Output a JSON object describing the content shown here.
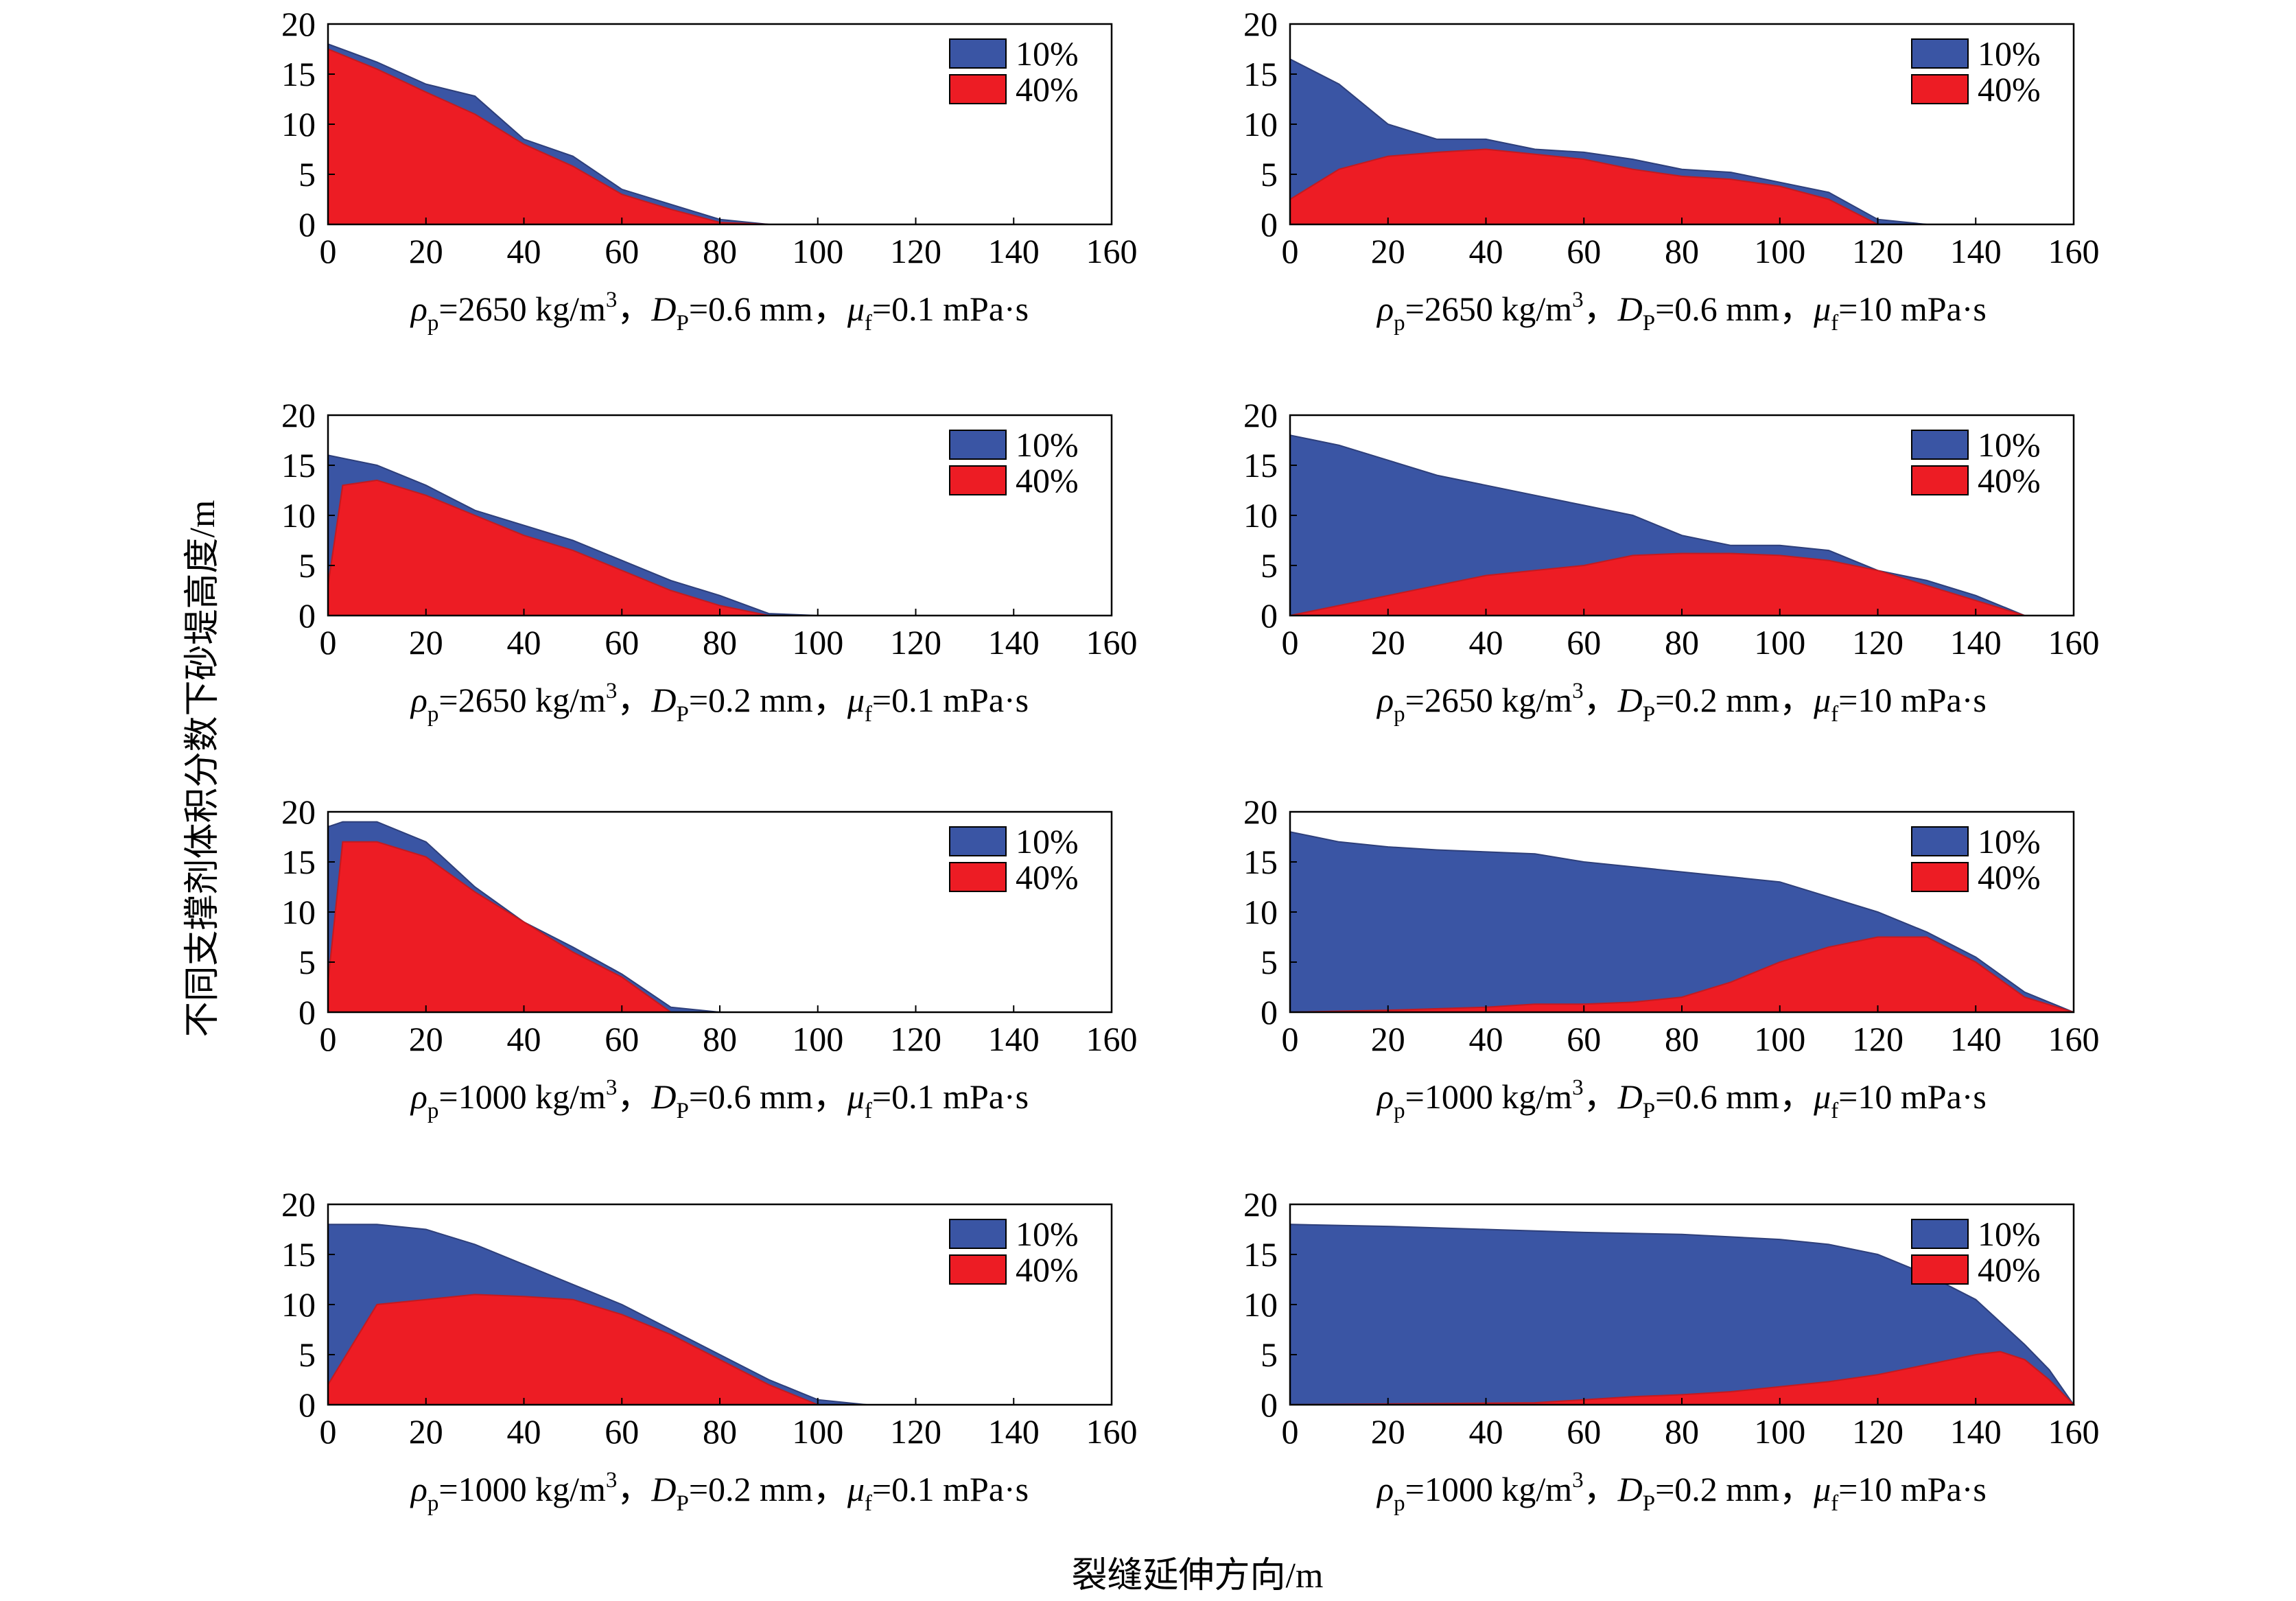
{
  "figure": {
    "ylabel": "不同支撑剂体积分数下砂堤高度/m",
    "xlabel": "裂缝延伸方向/m"
  },
  "legend_colors": {
    "10%": "#3a55a4",
    "40%": "#ed1c24"
  },
  "chart_data": [
    {
      "type": "area",
      "panel": 1,
      "caption": {
        "rho": "2650",
        "D": "0.6",
        "mu": "0.1"
      },
      "xlim": [
        0,
        160
      ],
      "ylim": [
        0,
        20
      ],
      "xticks": [
        0,
        20,
        40,
        60,
        80,
        100,
        120,
        140,
        160
      ],
      "yticks": [
        0,
        5,
        10,
        15,
        20
      ],
      "legend": "top-right",
      "series": [
        {
          "name": "10%",
          "x": [
            0,
            10,
            20,
            30,
            40,
            50,
            60,
            70,
            80,
            90
          ],
          "y": [
            18,
            16.2,
            14,
            12.8,
            8.5,
            6.8,
            3.5,
            2,
            0.5,
            0
          ]
        },
        {
          "name": "40%",
          "x": [
            0,
            10,
            20,
            30,
            40,
            50,
            60,
            70,
            80,
            90
          ],
          "y": [
            17.5,
            15.5,
            13.2,
            11,
            8,
            5.8,
            3,
            1.5,
            0.2,
            0
          ]
        }
      ]
    },
    {
      "type": "area",
      "panel": 2,
      "caption": {
        "rho": "2650",
        "D": "0.6",
        "mu": "10"
      },
      "xlim": [
        0,
        160
      ],
      "ylim": [
        0,
        20
      ],
      "xticks": [
        0,
        20,
        40,
        60,
        80,
        100,
        120,
        140,
        160
      ],
      "yticks": [
        0,
        5,
        10,
        15,
        20
      ],
      "legend": "top-right",
      "series": [
        {
          "name": "10%",
          "x": [
            0,
            10,
            20,
            30,
            40,
            50,
            60,
            70,
            80,
            90,
            100,
            110,
            120,
            130
          ],
          "y": [
            16.5,
            14,
            10,
            8.5,
            8.5,
            7.5,
            7.2,
            6.5,
            5.5,
            5.2,
            4.2,
            3.2,
            0.5,
            0
          ]
        },
        {
          "name": "40%",
          "x": [
            0,
            10,
            20,
            30,
            40,
            50,
            60,
            70,
            80,
            90,
            100,
            110,
            120
          ],
          "y": [
            2.5,
            5.5,
            6.8,
            7.2,
            7.5,
            7,
            6.5,
            5.5,
            4.8,
            4.5,
            3.8,
            2.5,
            0
          ]
        }
      ]
    },
    {
      "type": "area",
      "panel": 3,
      "caption": {
        "rho": "2650",
        "D": "0.2",
        "mu": "0.1"
      },
      "xlim": [
        0,
        160
      ],
      "ylim": [
        0,
        20
      ],
      "xticks": [
        0,
        20,
        40,
        60,
        80,
        100,
        120,
        140,
        160
      ],
      "yticks": [
        0,
        5,
        10,
        15,
        20
      ],
      "legend": "top-right",
      "series": [
        {
          "name": "10%",
          "x": [
            0,
            10,
            20,
            30,
            40,
            50,
            60,
            70,
            80,
            90,
            100
          ],
          "y": [
            16,
            15,
            13,
            10.5,
            9,
            7.5,
            5.5,
            3.5,
            2,
            0.2,
            0
          ]
        },
        {
          "name": "40%",
          "x": [
            0,
            3,
            10,
            20,
            30,
            40,
            50,
            60,
            70,
            80,
            90
          ],
          "y": [
            3,
            13,
            13.5,
            12,
            10,
            8,
            6.5,
            4.5,
            2.5,
            1,
            0
          ]
        }
      ]
    },
    {
      "type": "area",
      "panel": 4,
      "caption": {
        "rho": "2650",
        "D": "0.2",
        "mu": "10"
      },
      "xlim": [
        0,
        160
      ],
      "ylim": [
        0,
        20
      ],
      "xticks": [
        0,
        20,
        40,
        60,
        80,
        100,
        120,
        140,
        160
      ],
      "yticks": [
        0,
        5,
        10,
        15,
        20
      ],
      "legend": "top-right",
      "series": [
        {
          "name": "10%",
          "x": [
            0,
            10,
            20,
            30,
            40,
            50,
            60,
            70,
            80,
            90,
            100,
            110,
            120,
            130,
            140,
            150
          ],
          "y": [
            18,
            17,
            15.5,
            14,
            13,
            12,
            11,
            10,
            8,
            7,
            7,
            6.5,
            4.5,
            3.5,
            2,
            0
          ]
        },
        {
          "name": "40%",
          "x": [
            0,
            10,
            20,
            30,
            40,
            50,
            60,
            70,
            80,
            90,
            100,
            110,
            120,
            130,
            140,
            150
          ],
          "y": [
            0,
            1,
            2,
            3,
            4,
            4.5,
            5,
            6,
            6.2,
            6.2,
            6,
            5.5,
            4.5,
            3,
            1.5,
            0
          ]
        }
      ]
    },
    {
      "type": "area",
      "panel": 5,
      "caption": {
        "rho": "1000",
        "D": "0.6",
        "mu": "0.1"
      },
      "xlim": [
        0,
        160
      ],
      "ylim": [
        0,
        20
      ],
      "xticks": [
        0,
        20,
        40,
        60,
        80,
        100,
        120,
        140,
        160
      ],
      "yticks": [
        0,
        5,
        10,
        15,
        20
      ],
      "legend": "top-right",
      "series": [
        {
          "name": "10%",
          "x": [
            0,
            3,
            10,
            20,
            30,
            40,
            50,
            60,
            70,
            80
          ],
          "y": [
            18.5,
            19,
            19,
            17,
            12.5,
            9,
            6.5,
            3.8,
            0.5,
            0
          ]
        },
        {
          "name": "40%",
          "x": [
            0,
            3,
            10,
            20,
            30,
            40,
            50,
            60,
            70
          ],
          "y": [
            3,
            17,
            17,
            15.5,
            12,
            9,
            6,
            3.5,
            0
          ]
        }
      ]
    },
    {
      "type": "area",
      "panel": 6,
      "caption": {
        "rho": "1000",
        "D": "0.6",
        "mu": "10"
      },
      "xlim": [
        0,
        160
      ],
      "ylim": [
        0,
        20
      ],
      "xticks": [
        0,
        20,
        40,
        60,
        80,
        100,
        120,
        140,
        160
      ],
      "yticks": [
        0,
        5,
        10,
        15,
        20
      ],
      "legend": "top-right",
      "series": [
        {
          "name": "10%",
          "x": [
            0,
            10,
            20,
            30,
            40,
            50,
            60,
            70,
            80,
            90,
            100,
            110,
            120,
            130,
            140,
            150,
            160
          ],
          "y": [
            18,
            17,
            16.5,
            16.2,
            16,
            15.8,
            15,
            14.5,
            14,
            13.5,
            13,
            11.5,
            10,
            8,
            5.5,
            2,
            0
          ]
        },
        {
          "name": "40%",
          "x": [
            0,
            20,
            40,
            50,
            60,
            70,
            80,
            90,
            100,
            110,
            120,
            130,
            140,
            150,
            160
          ],
          "y": [
            0,
            0.2,
            0.5,
            0.8,
            0.8,
            1,
            1.5,
            3,
            5,
            6.5,
            7.5,
            7.5,
            5,
            1.5,
            0
          ]
        }
      ]
    },
    {
      "type": "area",
      "panel": 7,
      "caption": {
        "rho": "1000",
        "D": "0.2",
        "mu": "0.1"
      },
      "xlim": [
        0,
        160
      ],
      "ylim": [
        0,
        20
      ],
      "xticks": [
        0,
        20,
        40,
        60,
        80,
        100,
        120,
        140,
        160
      ],
      "yticks": [
        0,
        5,
        10,
        15,
        20
      ],
      "legend": "top-right",
      "series": [
        {
          "name": "10%",
          "x": [
            0,
            10,
            20,
            30,
            40,
            50,
            60,
            70,
            80,
            90,
            100,
            110
          ],
          "y": [
            18,
            18,
            17.5,
            16,
            14,
            12,
            10,
            7.5,
            5,
            2.5,
            0.5,
            0
          ]
        },
        {
          "name": "40%",
          "x": [
            0,
            10,
            20,
            30,
            40,
            50,
            60,
            70,
            80,
            90,
            100
          ],
          "y": [
            2,
            10,
            10.5,
            11,
            10.8,
            10.5,
            9,
            7,
            4.5,
            2,
            0
          ]
        }
      ]
    },
    {
      "type": "area",
      "panel": 8,
      "caption": {
        "rho": "1000",
        "D": "0.2",
        "mu": "10"
      },
      "xlim": [
        0,
        160
      ],
      "ylim": [
        0,
        20
      ],
      "xticks": [
        0,
        20,
        40,
        60,
        80,
        100,
        120,
        140,
        160
      ],
      "yticks": [
        0,
        5,
        10,
        15,
        20
      ],
      "legend": "top-right",
      "series": [
        {
          "name": "10%",
          "x": [
            0,
            20,
            40,
            60,
            80,
            100,
            110,
            120,
            130,
            140,
            150,
            155,
            160
          ],
          "y": [
            18,
            17.8,
            17.5,
            17.2,
            17,
            16.5,
            16,
            15,
            13,
            10.5,
            6,
            3.5,
            0
          ]
        },
        {
          "name": "40%",
          "x": [
            0,
            50,
            60,
            70,
            80,
            90,
            100,
            110,
            120,
            130,
            140,
            145,
            150,
            155,
            160
          ],
          "y": [
            0,
            0.2,
            0.5,
            0.8,
            1,
            1.3,
            1.8,
            2.3,
            3,
            4,
            5,
            5.3,
            4.5,
            2.5,
            0
          ]
        }
      ]
    }
  ]
}
